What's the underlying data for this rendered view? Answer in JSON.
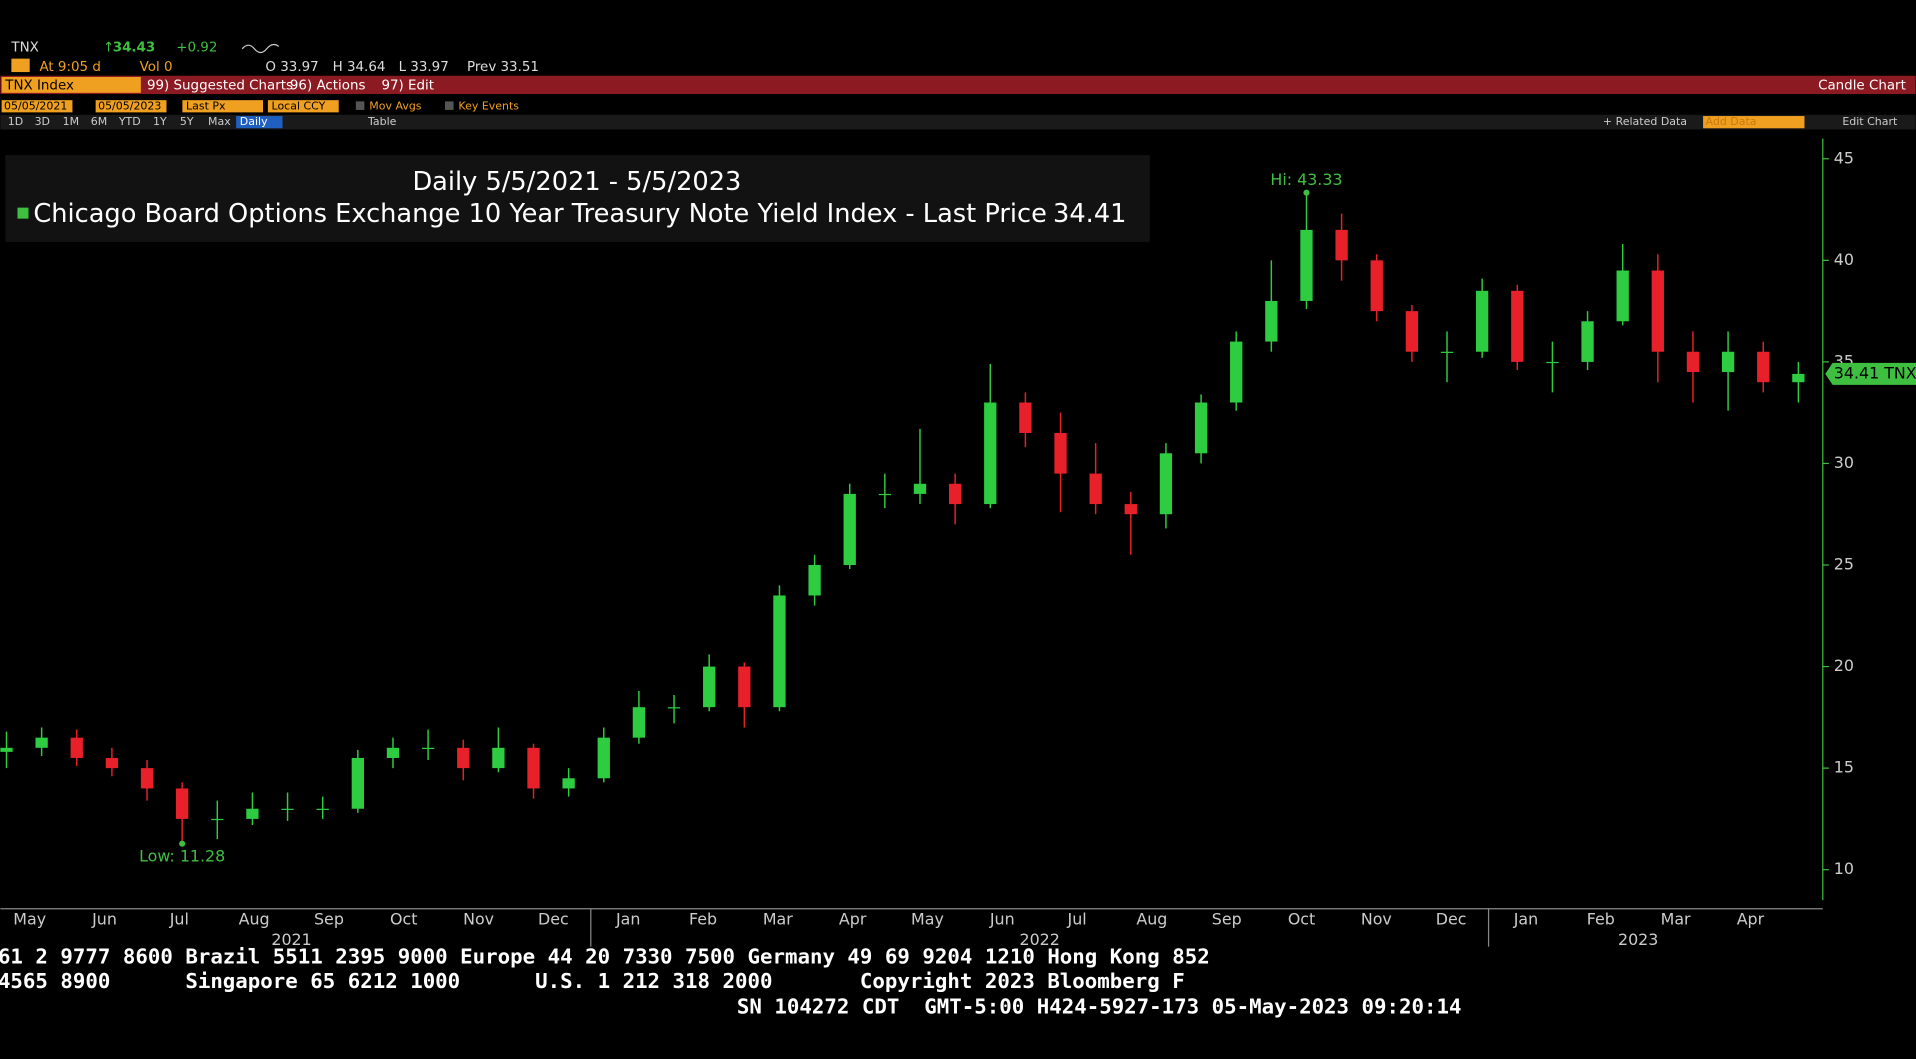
{
  "header": {
    "ticker": "TNX",
    "price": "34.43",
    "change": "+0.92",
    "time": "At 9:05 d",
    "volume": "Vol 0",
    "open": "O 33.97",
    "high": "H 34.64",
    "low": "L 33.97",
    "prev": "Prev 33.51"
  },
  "toolbar": {
    "security": "TNX Index",
    "suggested": "99) Suggested Charts",
    "actions": "96) Actions",
    "edit": "97) Edit",
    "chart_kind": "Candle Chart"
  },
  "settings": {
    "start": "05/05/2021",
    "end": "05/05/2023",
    "field": "Last Px",
    "currency": "Local CCY",
    "mov_avgs": "Mov Avgs",
    "key_events": "Key Events"
  },
  "periods": [
    "1D",
    "3D",
    "1M",
    "6M",
    "YTD",
    "1Y",
    "5Y",
    "Max"
  ],
  "frequency": "Daily",
  "table": "Table",
  "related": "+ Related Data",
  "add_data": "Add Data",
  "edit_chart": "Edit Chart",
  "chart_data": {
    "type": "candlestick",
    "title": "Daily 5/5/2021 - 5/5/2023",
    "series_name": "Chicago Board Options Exchange 10 Year Treasury Note Yield Index - Last Price",
    "last_price": 34.41,
    "last_price_tag": "34.41 TNX",
    "up_color": "#2ecc40",
    "down_color": "#e8202a",
    "accent": "#3fbf3f",
    "months": [
      "May",
      "Jun",
      "Jul",
      "Aug",
      "Sep",
      "Oct",
      "Nov",
      "Dec",
      "Jan",
      "Feb",
      "Mar",
      "Apr",
      "May",
      "Jun",
      "Jul",
      "Aug",
      "Sep",
      "Oct",
      "Nov",
      "Dec",
      "Jan",
      "Feb",
      "Mar",
      "Apr"
    ],
    "years": [
      "2021",
      "2022",
      "2023"
    ],
    "ylim": [
      8.5,
      46
    ],
    "yticks": [
      10,
      15,
      20,
      25,
      30,
      35,
      40,
      45
    ],
    "annotations": [
      {
        "text": "Hi: 43.33",
        "index": 37,
        "value": 43.33
      },
      {
        "text": "Low: 11.28",
        "index": 5,
        "value": 11.28
      }
    ],
    "open": [
      15.8,
      16.0,
      16.5,
      15.5,
      15.0,
      14.0,
      12.5,
      12.5,
      13.0,
      13.0,
      13.0,
      15.5,
      16.0,
      16.0,
      15.0,
      16.0,
      14.0,
      14.5,
      16.5,
      18.0,
      18.0,
      20.0,
      18.0,
      23.5,
      25.0,
      28.5,
      28.5,
      29.0,
      28.0,
      33.0,
      31.5,
      29.5,
      28.0,
      27.5,
      30.5,
      33.0,
      36.0,
      38.0,
      41.5,
      40.0,
      37.5,
      35.5,
      35.5,
      38.5,
      35.0,
      35.0,
      37.0,
      39.5,
      35.5,
      34.5,
      35.5,
      34.0
    ],
    "high": [
      16.8,
      17.0,
      16.9,
      16.0,
      15.4,
      14.3,
      13.4,
      13.8,
      13.8,
      13.6,
      15.9,
      16.5,
      16.9,
      16.4,
      17.0,
      16.2,
      15.0,
      17.0,
      18.8,
      18.6,
      20.6,
      20.2,
      24.0,
      25.5,
      29.0,
      29.5,
      31.7,
      29.5,
      34.9,
      33.5,
      32.5,
      31.0,
      28.6,
      31.0,
      33.4,
      36.5,
      40.0,
      43.33,
      42.3,
      40.3,
      37.8,
      36.5,
      39.1,
      38.8,
      36.0,
      37.5,
      40.8,
      40.3,
      36.5,
      36.5,
      36.0,
      35.0
    ],
    "low": [
      15.0,
      15.6,
      15.1,
      14.6,
      13.4,
      11.28,
      11.5,
      12.2,
      12.4,
      12.5,
      12.8,
      15.0,
      15.4,
      14.4,
      14.8,
      13.5,
      13.6,
      14.3,
      16.2,
      17.2,
      17.8,
      17.0,
      17.8,
      23.0,
      24.8,
      27.8,
      28.0,
      27.0,
      27.8,
      30.8,
      27.6,
      27.5,
      25.5,
      26.8,
      30.0,
      32.6,
      35.5,
      37.6,
      39.0,
      37.0,
      35.0,
      34.0,
      35.2,
      34.6,
      33.5,
      34.6,
      36.8,
      34.0,
      33.0,
      32.6,
      33.5,
      33.0
    ],
    "close": [
      16.0,
      16.5,
      15.5,
      15.0,
      14.0,
      12.5,
      12.5,
      13.0,
      13.0,
      13.0,
      15.5,
      16.0,
      16.0,
      15.0,
      16.0,
      14.0,
      14.5,
      16.5,
      18.0,
      18.0,
      20.0,
      18.0,
      23.5,
      25.0,
      28.5,
      28.5,
      29.0,
      28.0,
      33.0,
      31.5,
      29.5,
      28.0,
      27.5,
      30.5,
      33.0,
      36.0,
      38.0,
      41.5,
      40.0,
      37.5,
      35.5,
      35.5,
      38.5,
      35.0,
      35.0,
      37.0,
      39.5,
      35.5,
      34.5,
      35.5,
      34.0,
      34.41
    ]
  },
  "footer": [
    "61 2 9777 8600 Brazil 5511 2395 9000 Europe 44 20 7330 7500 Germany 49 69 9204 1210 Hong Kong 852",
    "4565 8900      Singapore 65 6212 1000      U.S. 1 212 318 2000       Copyright 2023 Bloomberg F",
    "SN 104272 CDT  GMT-5:00 H424-5927-173 05-May-2023 09:20:14"
  ]
}
